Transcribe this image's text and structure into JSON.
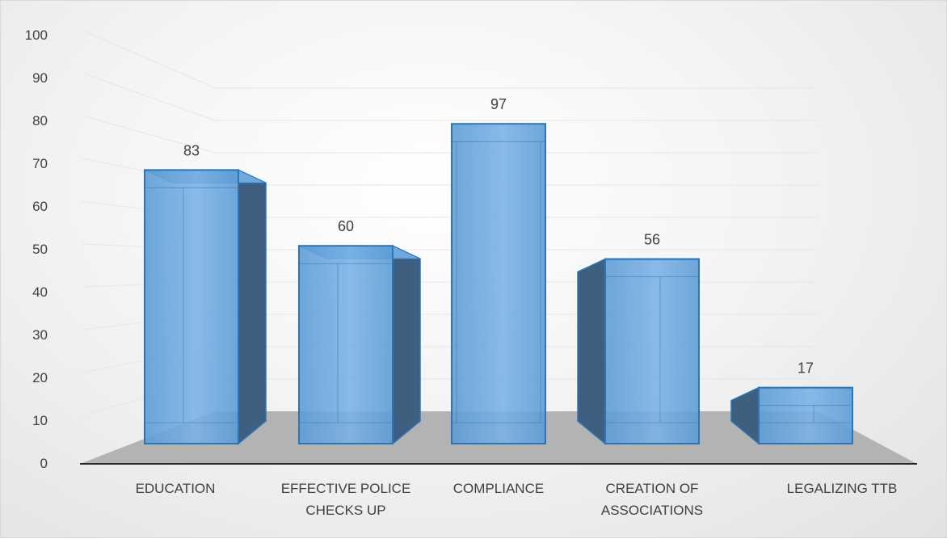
{
  "chart_data": {
    "type": "bar",
    "style": "3d-column",
    "title": "",
    "xlabel": "",
    "ylabel": "",
    "categories": [
      [
        "EDUCATION"
      ],
      [
        "EFFECTIVE POLICE",
        "CHECKS UP"
      ],
      [
        "COMPLIANCE"
      ],
      [
        "CREATION OF",
        "ASSOCIATIONS"
      ],
      [
        "LEGALIZING TTB"
      ]
    ],
    "values": [
      83,
      60,
      97,
      56,
      17
    ],
    "ylim": [
      0,
      100
    ],
    "yticks": [
      0,
      10,
      20,
      30,
      40,
      50,
      60,
      70,
      80,
      90,
      100
    ],
    "grid": true,
    "legend": "none",
    "colors": {
      "bar_front": "#5b9bd5",
      "bar_edge": "#2e75b6",
      "bar_side": "#3f5f80",
      "floor": "#b3b3b3"
    }
  }
}
